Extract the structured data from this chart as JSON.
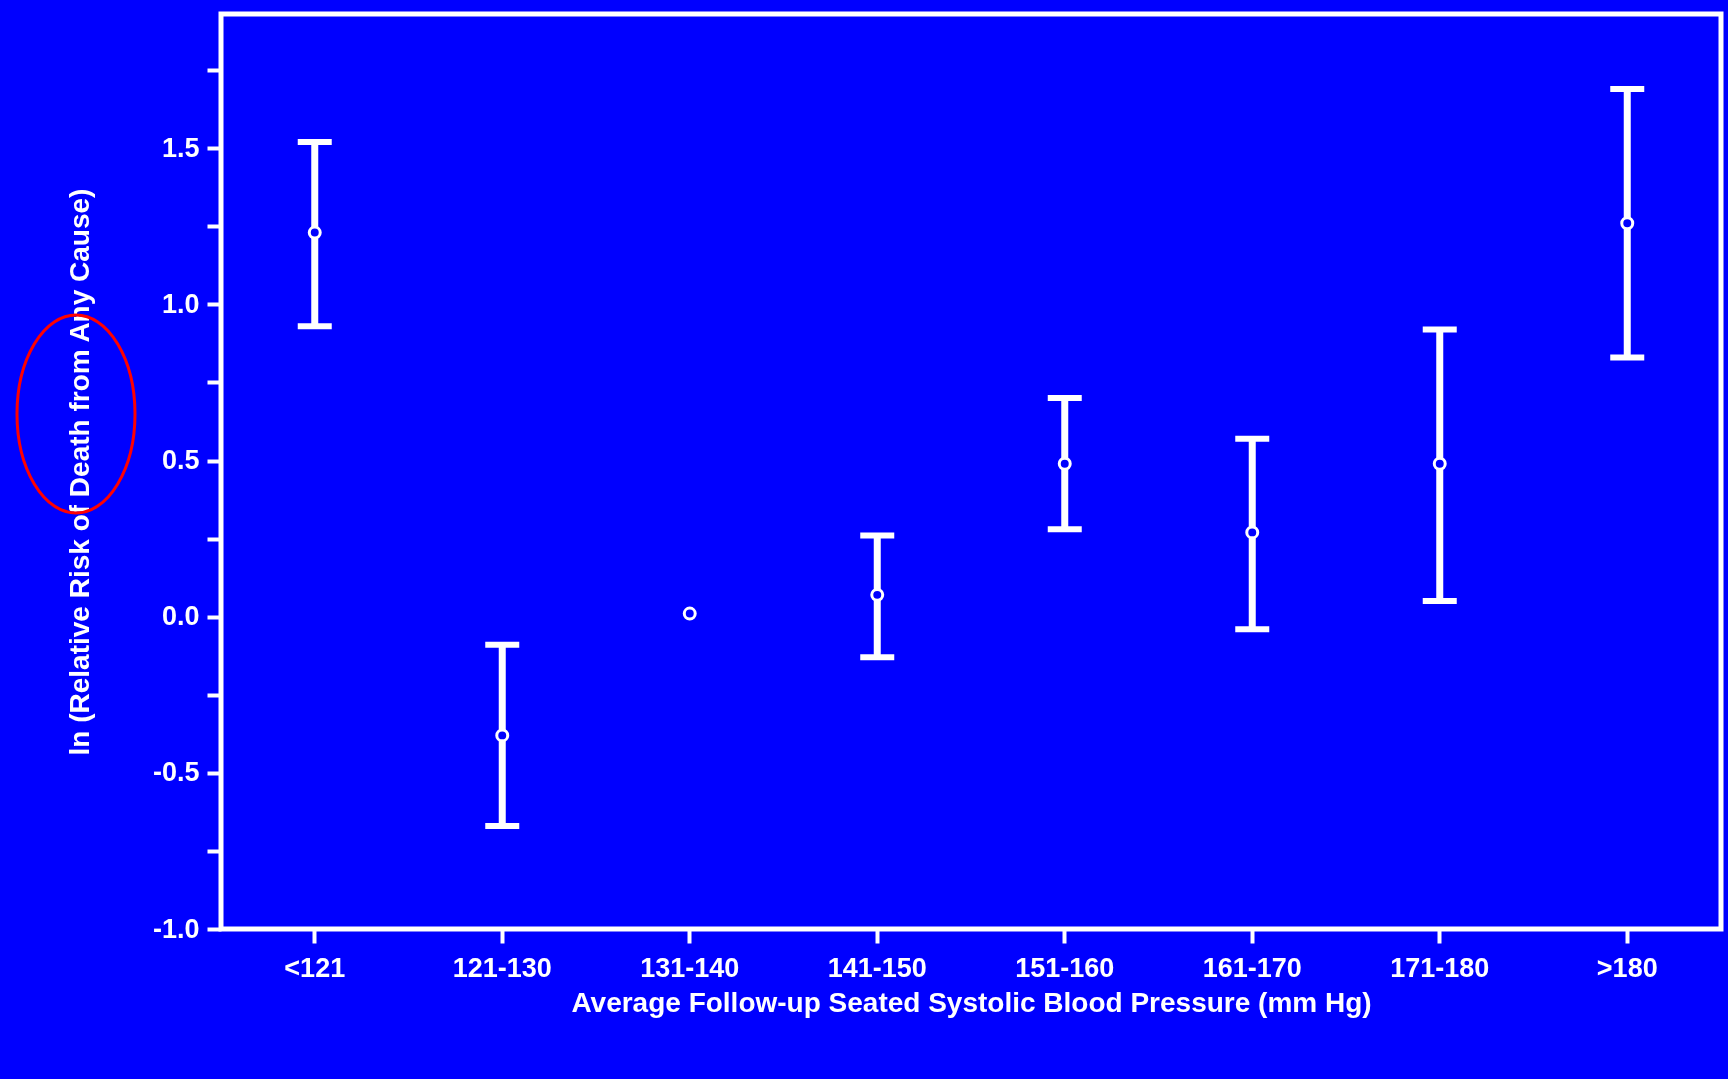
{
  "chart_data": {
    "type": "scatter",
    "xlabel": "Average Follow-up Seated Systolic Blood Pressure (mm Hg)",
    "ylabel": "ln (Relative Risk of Death from Any Cause)",
    "categories": [
      "<121",
      "121-130",
      "131-140",
      "141-150",
      "151-160",
      "161-170",
      "171-180",
      ">180"
    ],
    "values": [
      1.23,
      -0.38,
      0.01,
      0.07,
      0.49,
      0.27,
      0.49,
      1.26
    ],
    "errors": [
      [
        0.93,
        1.52
      ],
      [
        -0.67,
        -0.09
      ],
      null,
      [
        -0.13,
        0.26
      ],
      [
        0.28,
        0.7
      ],
      [
        -0.04,
        0.57
      ],
      [
        0.05,
        0.92
      ],
      [
        0.83,
        1.69
      ]
    ],
    "color": "#ffffff",
    "marker": "circle",
    "grid": false,
    "ylim": [
      -1,
      1.93
    ],
    "yticks": [
      {
        "value": -1,
        "label": "-1.0"
      },
      {
        "value": -0.75,
        "label": null
      },
      {
        "value": -0.5,
        "label": "-0.5"
      },
      {
        "value": -0.25,
        "label": null
      },
      {
        "value": 0,
        "label": "0.0"
      },
      {
        "value": 0.25,
        "label": null
      },
      {
        "value": 0.5,
        "label": "0.5"
      },
      {
        "value": 0.75,
        "label": null
      },
      {
        "value": 1,
        "label": "1.0"
      },
      {
        "value": 1.25,
        "label": null
      },
      {
        "value": 1.5,
        "label": "1.5"
      },
      {
        "value": 1.75,
        "label": null
      }
    ]
  }
}
